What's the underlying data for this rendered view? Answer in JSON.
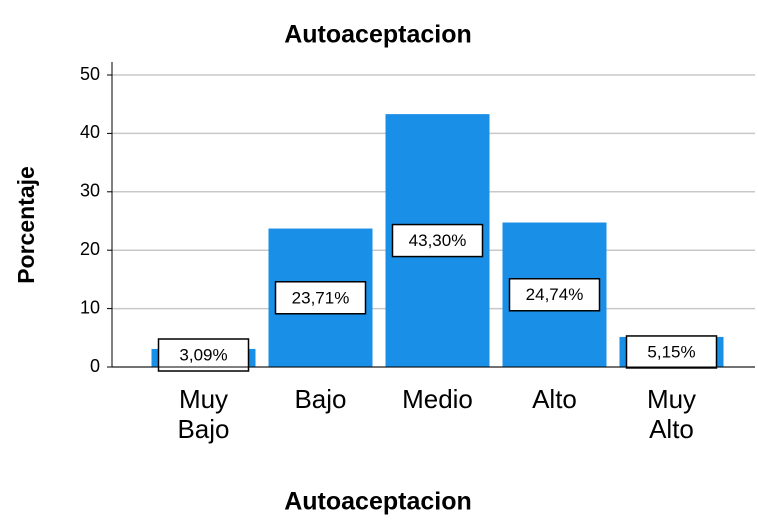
{
  "chart_data": {
    "type": "bar",
    "title": "Autoaceptacion",
    "x_label": "Autoaceptacion",
    "y_label": "Porcentaje",
    "categories": [
      "Muy Bajo",
      "Bajo",
      "Medio",
      "Alto",
      "Muy Alto"
    ],
    "values": [
      3.09,
      23.71,
      43.3,
      24.74,
      5.15
    ],
    "value_labels": [
      "3,09%",
      "23,71%",
      "43,30%",
      "24,74%",
      "5,15%"
    ],
    "color": "#1a8fe8",
    "ylim": [
      0,
      50
    ],
    "yticks": [
      0,
      10,
      20,
      30,
      40,
      50
    ],
    "grid": true
  }
}
